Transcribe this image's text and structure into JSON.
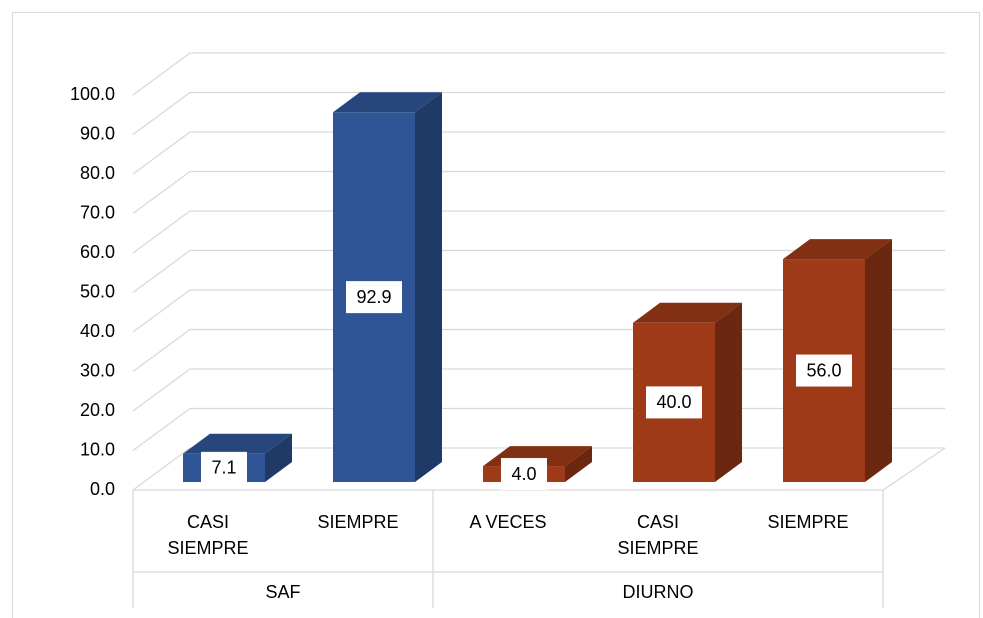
{
  "chart_data": {
    "type": "bar3d",
    "groups": [
      {
        "name": "SAF",
        "color": "#2f5597",
        "categories": [
          "CASI SIEMPRE",
          "SIEMPRE"
        ],
        "values": [
          7.1,
          92.9
        ],
        "value_labels": [
          "7.1",
          "92.9"
        ]
      },
      {
        "name": "DIURNO",
        "color": "#9e3a17",
        "categories": [
          "A VECES",
          "CASI SIEMPRE",
          "SIEMPRE"
        ],
        "values": [
          4.0,
          40.0,
          56.0
        ],
        "value_labels": [
          "4.0",
          "40.0",
          "56.0"
        ]
      }
    ],
    "ylim": [
      0,
      100
    ],
    "yticks": [
      {
        "value": 0,
        "label": "0.0"
      },
      {
        "value": 10,
        "label": "10.0"
      },
      {
        "value": 20,
        "label": "20.0"
      },
      {
        "value": 30,
        "label": "30.0"
      },
      {
        "value": 40,
        "label": "40.0"
      },
      {
        "value": 50,
        "label": "50.0"
      },
      {
        "value": 60,
        "label": "60.0"
      },
      {
        "value": 70,
        "label": "70.0"
      },
      {
        "value": 80,
        "label": "80.0"
      },
      {
        "value": 90,
        "label": "90.0"
      },
      {
        "value": 100,
        "label": "100.0"
      }
    ],
    "grid": true
  }
}
